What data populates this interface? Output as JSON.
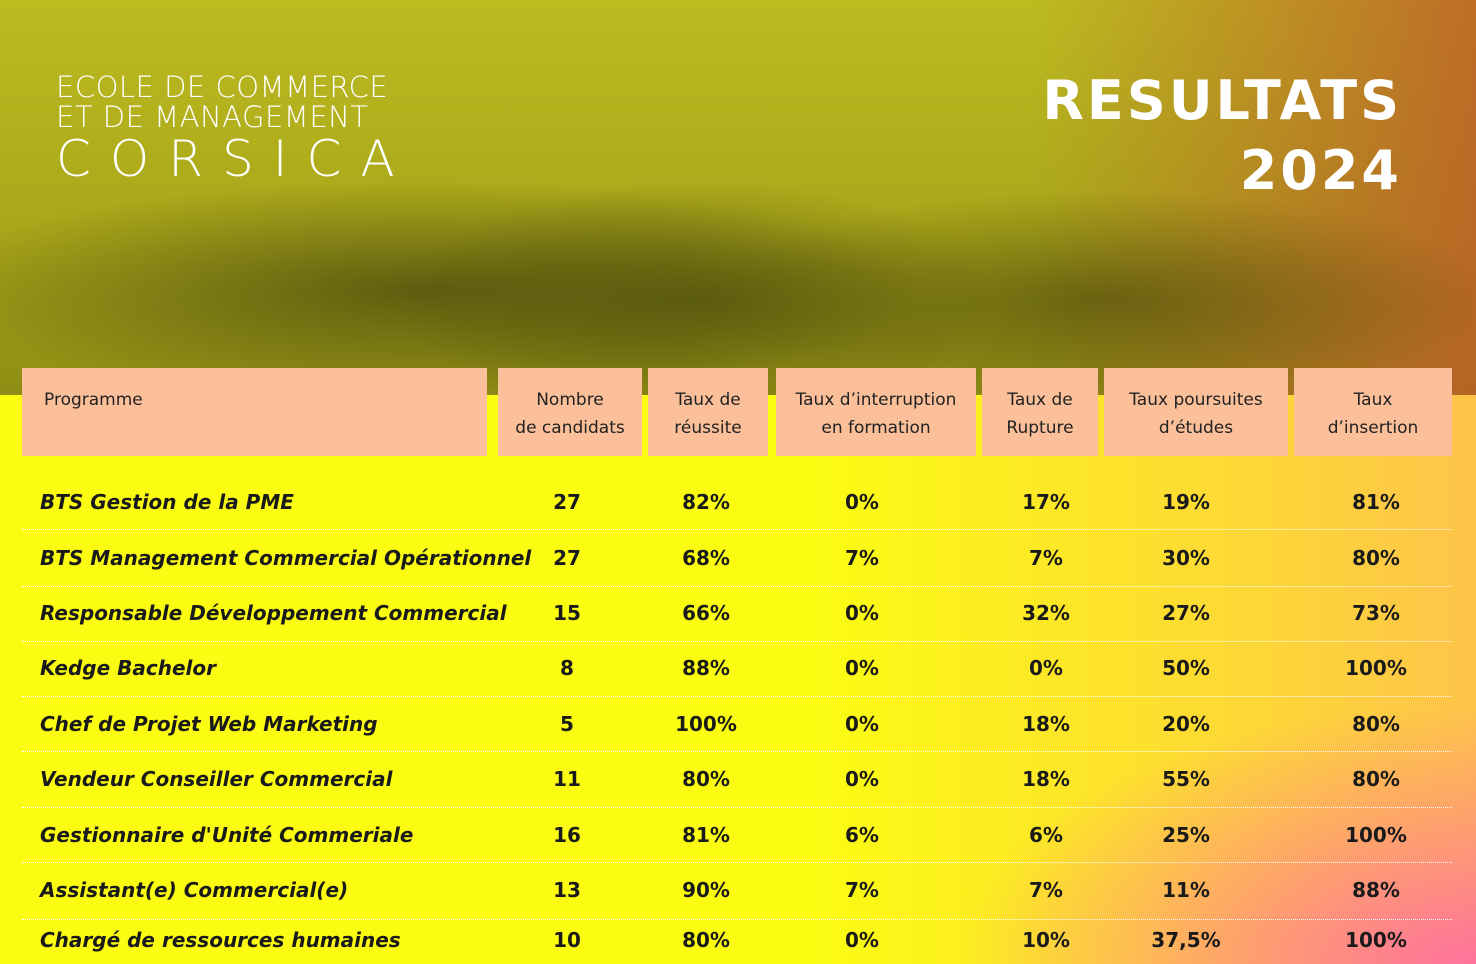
{
  "logo": {
    "lines": [
      "ECOLE DE COMMERCE",
      "ET DE MANAGEMENT"
    ],
    "brand": "CORSICA"
  },
  "title": {
    "lines": [
      "RESULTATS",
      "2024"
    ]
  },
  "table": {
    "headers": [
      [
        "Programme"
      ],
      [
        "Nombre",
        "de candidats"
      ],
      [
        "Taux de",
        "réussite"
      ],
      [
        "Taux d’interruption",
        "en formation"
      ],
      [
        "Taux de",
        "Rupture"
      ],
      [
        "Taux poursuites",
        "d’études"
      ],
      [
        "Taux",
        "d’insertion"
      ]
    ],
    "rows": [
      [
        "BTS Gestion de la PME",
        "27",
        "82%",
        "0%",
        "17%",
        "19%",
        "81%"
      ],
      [
        "BTS Management Commercial Opérationnel",
        "27",
        "68%",
        "7%",
        "7%",
        "30%",
        "80%"
      ],
      [
        "Responsable Développement Commercial",
        "15",
        "66%",
        "0%",
        "32%",
        "27%",
        "73%"
      ],
      [
        "Kedge Bachelor",
        "8",
        "88%",
        "0%",
        "0%",
        "50%",
        "100%"
      ],
      [
        "Chef de Projet Web Marketing",
        "5",
        "100%",
        "0%",
        "18%",
        "20%",
        "80%"
      ],
      [
        "Vendeur Conseiller Commercial",
        "11",
        "80%",
        "0%",
        "18%",
        "55%",
        "80%"
      ],
      [
        "Gestionnaire d'Unité Commeriale",
        "16",
        "81%",
        "6%",
        "6%",
        "25%",
        "100%"
      ],
      [
        "Assistant(e) Commercial(e)",
        "13",
        "90%",
        "7%",
        "7%",
        "11%",
        "88%"
      ],
      [
        "Chargé de ressources humaines",
        "10",
        "80%",
        "0%",
        "10%",
        "37,5%",
        "100%"
      ]
    ]
  }
}
